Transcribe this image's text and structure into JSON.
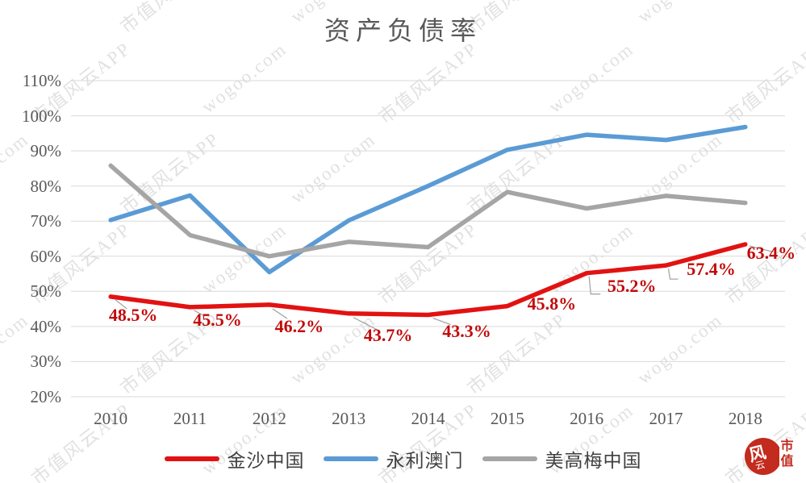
{
  "title": "资产负债率",
  "chart_data": {
    "type": "line",
    "categories": [
      "2010",
      "2011",
      "2012",
      "2013",
      "2014",
      "2015",
      "2016",
      "2017",
      "2018"
    ],
    "series": [
      {
        "name": "金沙中国",
        "color": "#e21212",
        "label_color": "#c20a0a",
        "values": [
          48.5,
          45.5,
          46.2,
          43.7,
          43.3,
          45.8,
          55.2,
          57.4,
          63.4
        ],
        "point_labels": [
          "48.5%",
          "45.5%",
          "46.2%",
          "43.7%",
          "43.3%",
          "45.8%",
          "55.2%",
          "57.4%",
          "63.4%"
        ]
      },
      {
        "name": "永利澳门",
        "color": "#5b9bd5",
        "values": [
          70.3,
          77.3,
          55.5,
          70.2,
          80.0,
          90.3,
          94.6,
          93.1,
          96.8
        ]
      },
      {
        "name": "美高梅中国",
        "color": "#a5a5a5",
        "values": [
          85.8,
          66.0,
          60.0,
          64.1,
          62.6,
          78.3,
          73.6,
          77.2,
          75.2
        ]
      }
    ],
    "ylim": [
      20,
      110
    ],
    "ytick_step": 10,
    "ytick_values": [
      110,
      100,
      90,
      80,
      70,
      60,
      50,
      40,
      30,
      20
    ],
    "ytick_labels": [
      "110%",
      "100%",
      "90%",
      "80%",
      "70%",
      "60%",
      "50%",
      "40%",
      "30%",
      "20%"
    ],
    "grid": true,
    "gridline_color": "#d9d9d9",
    "leader_color": "#a6a6a6",
    "legend_position": "bottom"
  },
  "watermark": {
    "texts": [
      "wogoo.com",
      "市值风云APP"
    ]
  },
  "logo": {
    "wind": "风",
    "cloud": "云",
    "shi": "市",
    "zhi": "值"
  }
}
